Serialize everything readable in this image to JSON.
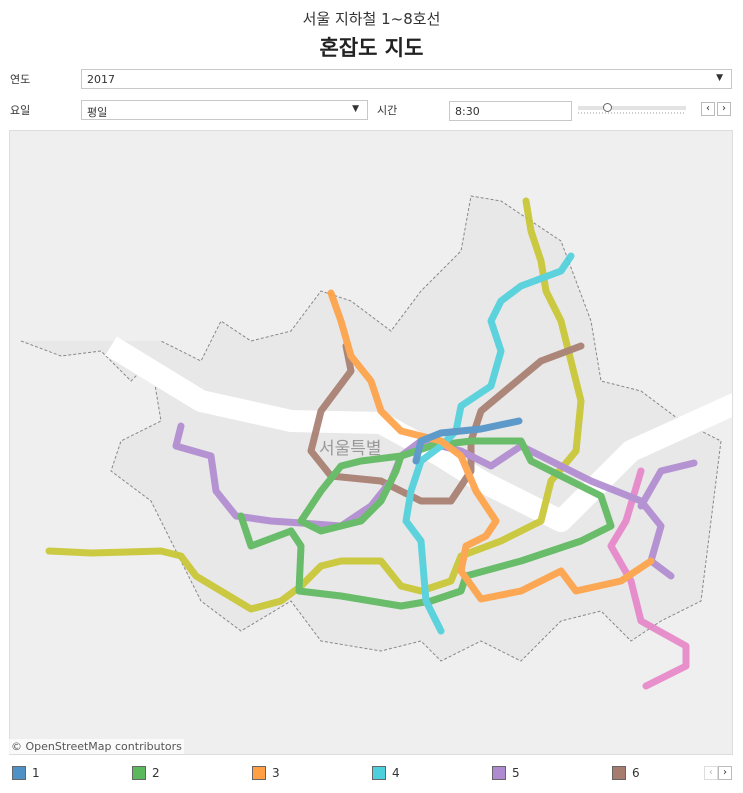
{
  "header": {
    "subtitle": "서울 지하철 1~8호선",
    "title": "혼잡도 지도"
  },
  "filters": {
    "year": {
      "label": "연도",
      "value": "2017"
    },
    "day": {
      "label": "요일",
      "value": "평일"
    },
    "time": {
      "label": "시간",
      "value": "8:30",
      "slider_fraction": 0.27,
      "prev": "‹",
      "next": "›"
    }
  },
  "map": {
    "place_label": "서울특별",
    "attribution": "© OpenStreetMap contributors"
  },
  "legend": {
    "items": [
      {
        "label": "1",
        "color": "#4e91c6"
      },
      {
        "label": "2",
        "color": "#5cb85c"
      },
      {
        "label": "3",
        "color": "#ffa044"
      },
      {
        "label": "4",
        "color": "#4dd0dc"
      },
      {
        "label": "5",
        "color": "#b08ad0"
      },
      {
        "label": "6",
        "color": "#a67c6e"
      }
    ],
    "hidden_colors": {
      "7": "#c8c530",
      "8": "#e585c8"
    },
    "prev": "‹",
    "next": "›"
  }
}
